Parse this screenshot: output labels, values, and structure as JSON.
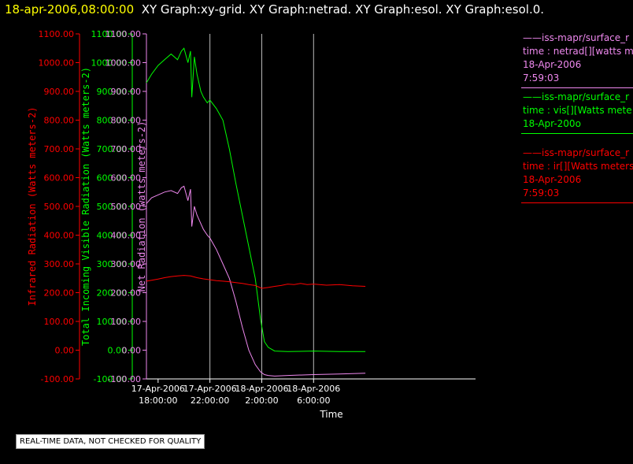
{
  "header": {
    "timestamp": "18-apr-2006,08:00:00",
    "graphs": "XY Graph:xy-grid.  XY Graph:netrad.  XY Graph:esol.  XY Graph:esol.0."
  },
  "notice": "REAL-TIME DATA, NOT CHECKED FOR QUALITY",
  "colors": {
    "ir": "#ff0000",
    "vis": "#00ff00",
    "net": "#ee88ee",
    "frame": "#ffffff",
    "grid": "#bbbbbb"
  },
  "legend": [
    {
      "color": "#ee88ee",
      "lines": [
        "——iss-mapr/surface_r",
        "time : netrad[][watts m",
        "18-Apr-2006",
        "7:59:03"
      ]
    },
    {
      "color": "#00ff00",
      "lines": [
        "——iss-mapr/surface_r",
        "time : vis[][Watts mete",
        "18-Apr-200o"
      ]
    },
    {
      "color": "#ff0000",
      "lines": [
        "——iss-mapr/surface_r",
        "time : ir[][Watts meters",
        "18-Apr-2006",
        "7:59:03"
      ]
    }
  ],
  "chart_data": {
    "type": "line",
    "xlabel": "Time",
    "x_unit": "hours since 17-Apr-2006 14:00",
    "xlim": [
      17.1,
      42.5
    ],
    "x_ticks": [
      {
        "hours": 18,
        "label": [
          "17-Apr-2006",
          "18:00:00"
        ]
      },
      {
        "hours": 22,
        "label": [
          "17-Apr-2006",
          "22:00:00"
        ]
      },
      {
        "hours": 26,
        "label": [
          "18-Apr-2006",
          "2:00:00"
        ]
      },
      {
        "hours": 30,
        "label": [
          "18-Apr-2006",
          "6:00:00"
        ]
      }
    ],
    "vertical_gridlines_hours": [
      22,
      26,
      30
    ],
    "ylim": [
      -100,
      1100
    ],
    "y_ticks": [
      -100,
      0,
      100,
      200,
      300,
      400,
      500,
      600,
      700,
      800,
      900,
      1000,
      1100
    ],
    "y_tick_labels": [
      "-100.00",
      "0.00",
      "100.00",
      "200.00",
      "300.00",
      "400.00",
      "500.00",
      "600.00",
      "700.00",
      "800.00",
      "900.00",
      "1000.00",
      "1100.00"
    ],
    "axes": [
      {
        "label": "Infrared Radiation (Watts meters-2)",
        "color": "#ff0000"
      },
      {
        "label": "Total Incoming Visible Radiation (Watts meters-2)",
        "color": "#00ff00"
      },
      {
        "label": "Net Radiation (watts meters-2)",
        "color": "#ee88ee"
      }
    ],
    "series": [
      {
        "color": "#00ff00",
        "x": [
          17.1,
          17.5,
          18.0,
          18.5,
          19.0,
          19.5,
          19.8,
          20.0,
          20.3,
          20.5,
          20.6,
          20.8,
          21.0,
          21.3,
          21.5,
          21.8,
          22.0,
          22.5,
          23.0,
          23.5,
          24.0,
          24.5,
          25.0,
          25.5,
          25.9,
          26.2,
          26.5,
          27.0,
          28.0,
          30.0,
          32.0,
          34.0
        ],
        "y": [
          930,
          960,
          990,
          1010,
          1030,
          1010,
          1040,
          1050,
          1000,
          1040,
          880,
          1020,
          960,
          900,
          880,
          860,
          870,
          840,
          800,
          700,
          580,
          470,
          360,
          250,
          110,
          30,
          10,
          -3,
          -5,
          -3,
          -5,
          -5
        ]
      },
      {
        "color": "#ee88ee",
        "x": [
          17.1,
          17.5,
          18.0,
          18.5,
          19.0,
          19.5,
          19.8,
          20.0,
          20.3,
          20.5,
          20.6,
          20.8,
          21.0,
          21.3,
          21.5,
          21.8,
          22.0,
          22.5,
          23.0,
          23.5,
          24.0,
          24.5,
          25.0,
          25.5,
          25.9,
          26.2,
          26.5,
          27.0,
          28.0,
          30.0,
          32.0,
          34.0
        ],
        "y": [
          510,
          530,
          540,
          550,
          555,
          545,
          565,
          570,
          520,
          560,
          430,
          500,
          470,
          440,
          420,
          400,
          390,
          350,
          300,
          250,
          170,
          80,
          0,
          -50,
          -75,
          -85,
          -88,
          -90,
          -88,
          -85,
          -83,
          -80
        ]
      },
      {
        "color": "#ff0000",
        "x": [
          17.1,
          17.5,
          18.0,
          18.5,
          19.0,
          19.5,
          20.0,
          20.5,
          21.0,
          21.5,
          22.0,
          22.5,
          23.0,
          23.5,
          24.0,
          24.5,
          25.0,
          25.5,
          26.0,
          26.5,
          27.0,
          27.5,
          28.0,
          28.5,
          29.0,
          29.5,
          30.0,
          31.0,
          32.0,
          33.0,
          34.0
        ],
        "y": [
          240,
          243,
          247,
          252,
          256,
          258,
          260,
          258,
          252,
          248,
          245,
          242,
          240,
          238,
          235,
          232,
          228,
          225,
          215,
          218,
          222,
          225,
          230,
          228,
          232,
          228,
          230,
          226,
          228,
          224,
          222
        ]
      }
    ]
  }
}
